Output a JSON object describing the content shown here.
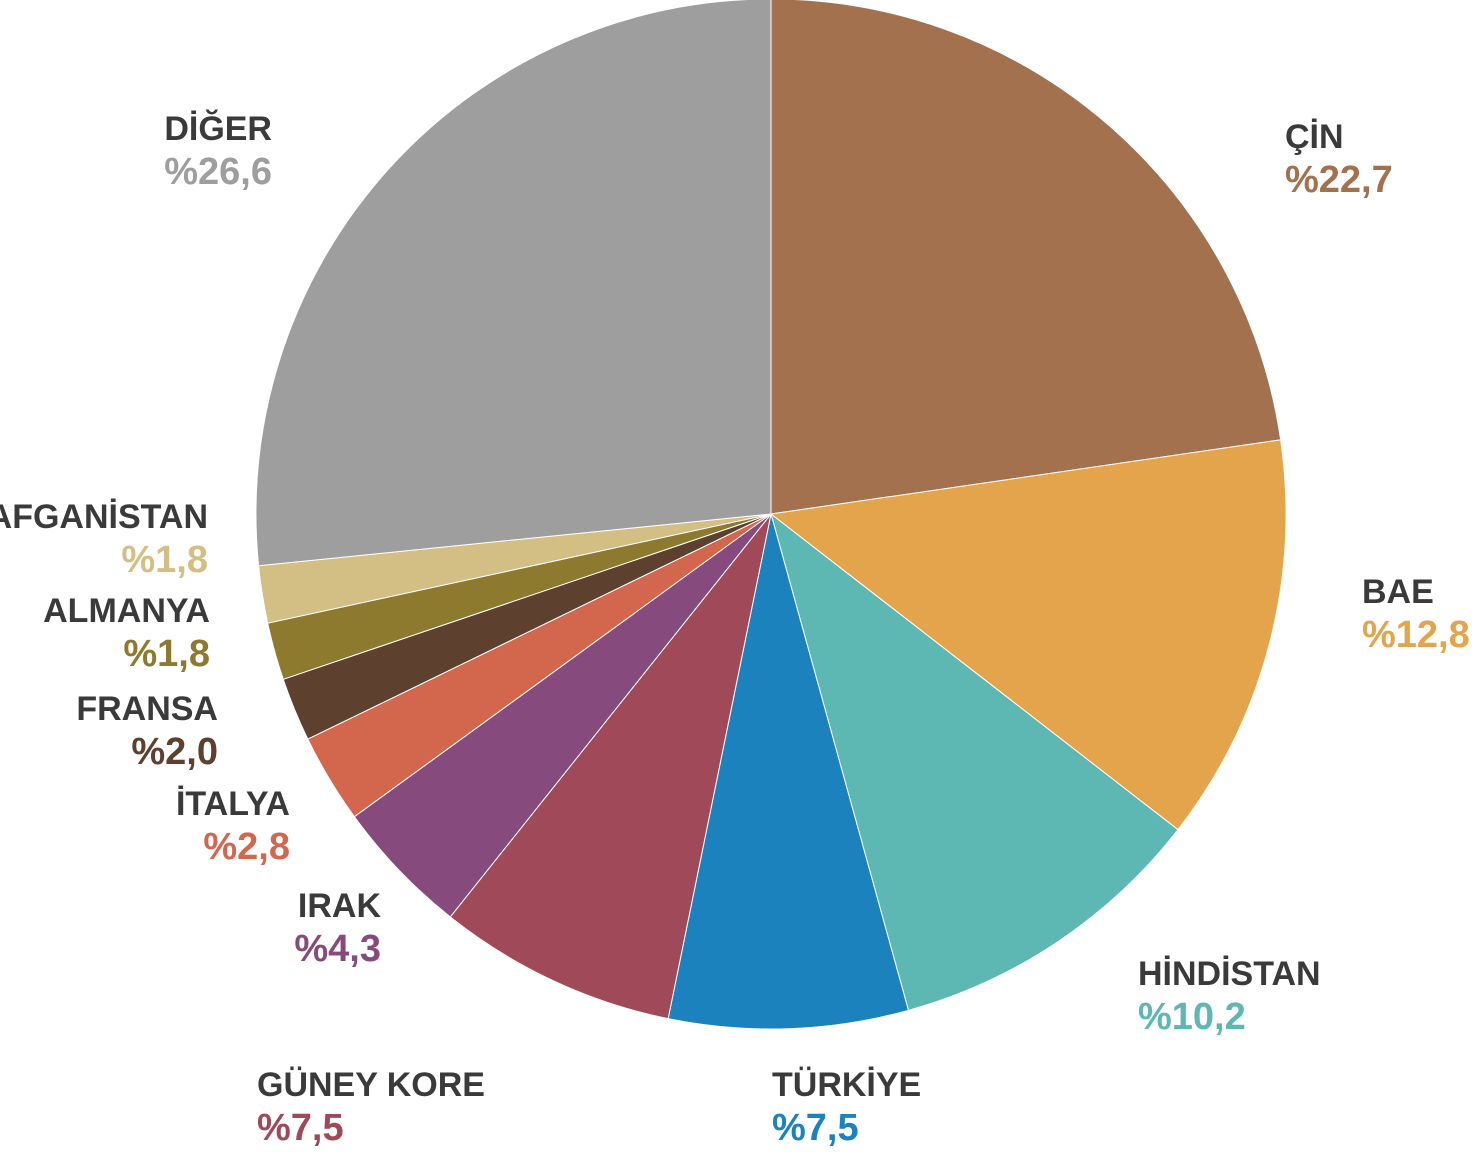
{
  "chart_data": {
    "type": "pie",
    "title": "",
    "slices": [
      {
        "label": "ÇİN",
        "value_text": "%22,7",
        "value": 22.7,
        "color": "#a3714e"
      },
      {
        "label": "BAE",
        "value_text": "%12,8",
        "value": 12.8,
        "color": "#e4a44b"
      },
      {
        "label": "HİNDİSTAN",
        "value_text": "%10,2",
        "value": 10.2,
        "color": "#5db7b3"
      },
      {
        "label": "TÜRKİYE",
        "value_text": "%7,5",
        "value": 7.5,
        "color": "#1b82bd"
      },
      {
        "label": "GÜNEY KORE",
        "value_text": "%7,5",
        "value": 7.5,
        "color": "#a04958"
      },
      {
        "label": "IRAK",
        "value_text": "%4,3",
        "value": 4.3,
        "color": "#864a7d"
      },
      {
        "label": "İTALYA",
        "value_text": "%2,8",
        "value": 2.8,
        "color": "#d3674e"
      },
      {
        "label": "FRANSA",
        "value_text": "%2,0",
        "value": 2.0,
        "color": "#5e402e"
      },
      {
        "label": "ALMANYA",
        "value_text": "%1,8",
        "value": 1.8,
        "color": "#8e7a2e"
      },
      {
        "label": "AFGANİSTAN",
        "value_text": "%1,8",
        "value": 1.8,
        "color": "#d3be83"
      },
      {
        "label": "DİĞER",
        "value_text": "%26,6",
        "value": 26.6,
        "color": "#9d9e9d"
      }
    ]
  }
}
